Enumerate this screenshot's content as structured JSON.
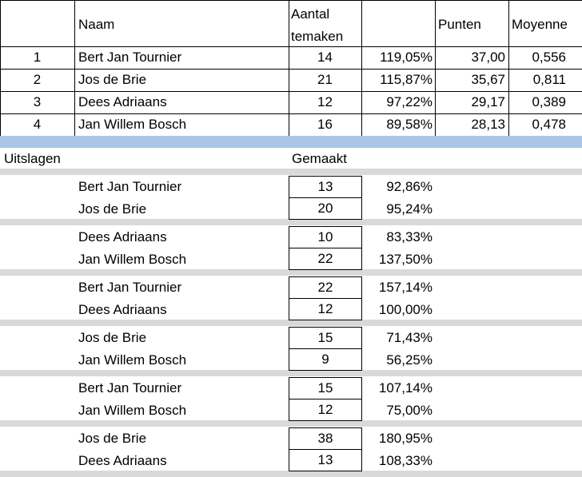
{
  "header": {
    "naam": "Naam",
    "aantal_line1": "Aantal",
    "aantal_line2": "temaken",
    "punten": "Punten",
    "moyenne": "Moyenne"
  },
  "standings": [
    {
      "rank": "1",
      "name": "Bert Jan Tournier",
      "aantal": "14",
      "pct": "119,05%",
      "punten": "37,00",
      "moyenne": "0,556"
    },
    {
      "rank": "2",
      "name": "Jos de Brie",
      "aantal": "21",
      "pct": "115,87%",
      "punten": "35,67",
      "moyenne": "0,811"
    },
    {
      "rank": "3",
      "name": "Dees Adriaans",
      "aantal": "12",
      "pct": "97,22%",
      "punten": "29,17",
      "moyenne": "0,389"
    },
    {
      "rank": "4",
      "name": "Jan Willem Bosch",
      "aantal": "16",
      "pct": "89,58%",
      "punten": "28,13",
      "moyenne": "0,478"
    }
  ],
  "results_header": {
    "uitslagen": "Uitslagen",
    "gemaakt": "Gemaakt"
  },
  "matches": [
    [
      {
        "name": "Bert Jan Tournier",
        "gemaakt": "13",
        "pct": "92,86%"
      },
      {
        "name": "Jos de Brie",
        "gemaakt": "20",
        "pct": "95,24%"
      }
    ],
    [
      {
        "name": "Dees Adriaans",
        "gemaakt": "10",
        "pct": "83,33%"
      },
      {
        "name": "Jan Willem Bosch",
        "gemaakt": "22",
        "pct": "137,50%"
      }
    ],
    [
      {
        "name": "Bert Jan Tournier",
        "gemaakt": "22",
        "pct": "157,14%"
      },
      {
        "name": "Dees Adriaans",
        "gemaakt": "12",
        "pct": "100,00%"
      }
    ],
    [
      {
        "name": "Jos de Brie",
        "gemaakt": "15",
        "pct": "71,43%"
      },
      {
        "name": "Jan Willem Bosch",
        "gemaakt": "9",
        "pct": "56,25%"
      }
    ],
    [
      {
        "name": "Bert Jan Tournier",
        "gemaakt": "15",
        "pct": "107,14%"
      },
      {
        "name": "Jan Willem Bosch",
        "gemaakt": "12",
        "pct": "75,00%"
      }
    ],
    [
      {
        "name": "Jos de Brie",
        "gemaakt": "38",
        "pct": "180,95%"
      },
      {
        "name": "Dees Adriaans",
        "gemaakt": "13",
        "pct": "108,33%"
      }
    ]
  ],
  "colors": {
    "separator_blue": "#a9c6e6",
    "separator_gray": "#d9d9d9"
  }
}
